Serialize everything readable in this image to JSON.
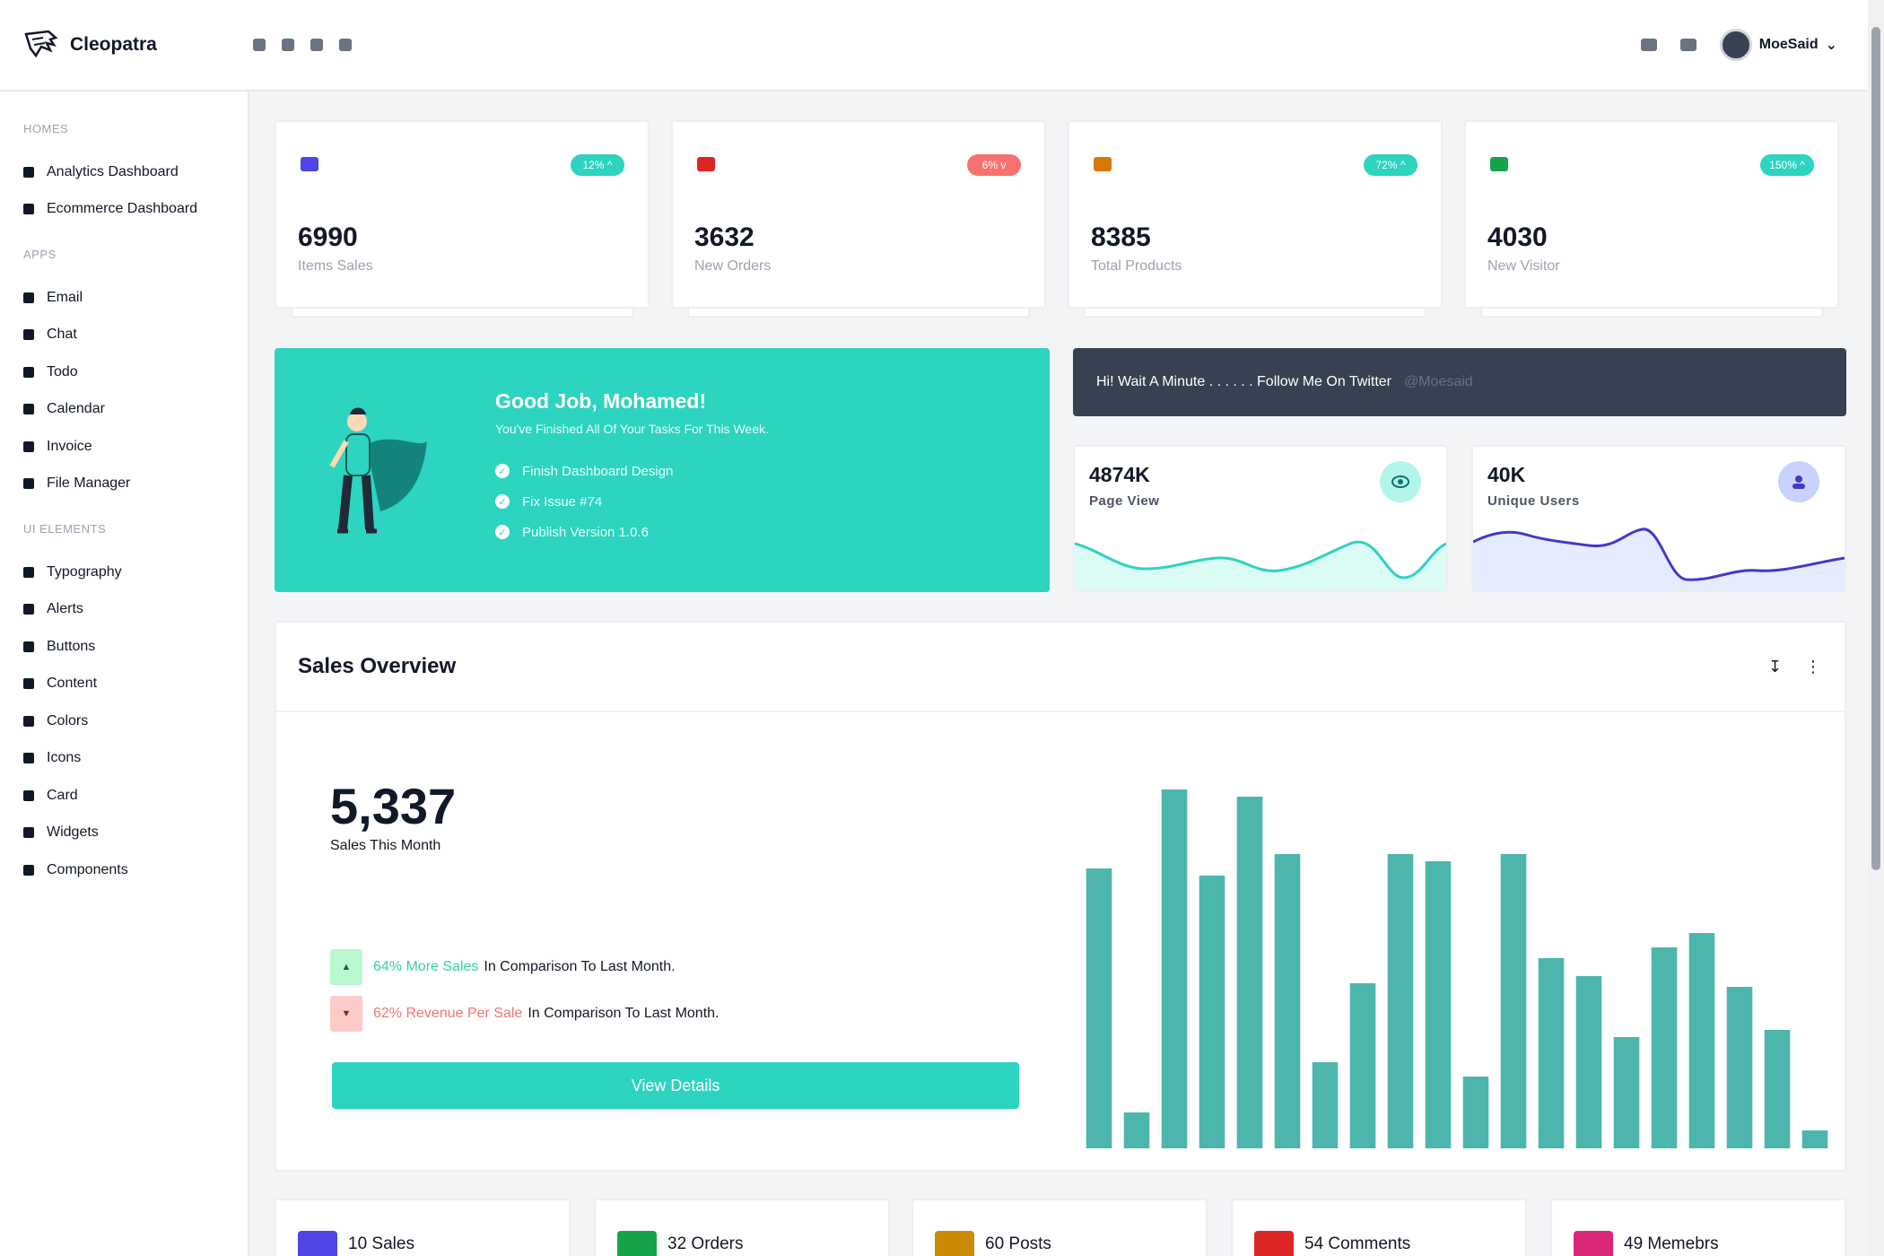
{
  "brand": {
    "name": "Cleopatra"
  },
  "user": {
    "name": "MoeSaid"
  },
  "sidebar": {
    "sections": [
      {
        "title": "HOMES",
        "items": [
          "Analytics Dashboard",
          "Ecommerce Dashboard"
        ]
      },
      {
        "title": "APPS",
        "items": [
          "Email",
          "Chat",
          "Todo",
          "Calendar",
          "Invoice",
          "File Manager"
        ]
      },
      {
        "title": "UI ELEMENTS",
        "items": [
          "Typography",
          "Alerts",
          "Buttons",
          "Content",
          "Colors",
          "Icons",
          "Card",
          "Widgets",
          "Components"
        ]
      }
    ]
  },
  "stats": [
    {
      "value": "6990",
      "label": "Items Sales",
      "badge": "12% ^",
      "trend": "up",
      "icon": "cart-icon",
      "color": "#4f46e5"
    },
    {
      "value": "3632",
      "label": "New Orders",
      "badge": "6% v",
      "trend": "down",
      "icon": "store-icon",
      "color": "#dc2626"
    },
    {
      "value": "8385",
      "label": "Total Products",
      "badge": "72% ^",
      "trend": "up",
      "icon": "sitemap-icon",
      "color": "#d97706"
    },
    {
      "value": "4030",
      "label": "New Visitor",
      "badge": "150% ^",
      "trend": "up",
      "icon": "users-icon",
      "color": "#16a34a"
    }
  ],
  "goodjob": {
    "title": "Good Job, Mohamed!",
    "subtitle": "You've Finished All Of Your Tasks For This Week.",
    "tasks": [
      "Finish Dashboard Design",
      "Fix Issue #74",
      "Publish Version 1.0.6"
    ]
  },
  "twitter": {
    "text": "Hi! Wait A Minute . . . . . . Follow Me On Twitter",
    "handle": "@Moesaid"
  },
  "mini": [
    {
      "value": "4874K",
      "label": "Page View",
      "icon": "eye-icon",
      "color": "#2dd4bf"
    },
    {
      "value": "40K",
      "label": "Unique Users",
      "icon": "user-group-icon",
      "color": "#4f46e5"
    }
  ],
  "sales": {
    "title": "Sales Overview",
    "total": "5,337",
    "total_label": "Sales This Month",
    "cmp_up_highlight": "64% More Sales",
    "cmp_up_rest": "In Comparison To Last Month.",
    "cmp_down_highlight": "62% Revenue Per Sale",
    "cmp_down_rest": "In Comparison To Last Month.",
    "button": "View Details"
  },
  "chart_data": {
    "type": "bar",
    "values": [
      78,
      10,
      100,
      76,
      98,
      82,
      24,
      46,
      82,
      80,
      20,
      82,
      53,
      48,
      31,
      56,
      60,
      45,
      33,
      5
    ],
    "ylim": [
      0,
      100
    ],
    "color": "#4db6ac"
  },
  "bottom": [
    {
      "text": "10 Sales",
      "color": "#4f46e5"
    },
    {
      "text": "32 Orders",
      "color": "#16a34a"
    },
    {
      "text": "60 Posts",
      "color": "#ca8a04"
    },
    {
      "text": "54 Comments",
      "color": "#dc2626"
    },
    {
      "text": "49 Memebrs",
      "color": "#db2777"
    }
  ]
}
